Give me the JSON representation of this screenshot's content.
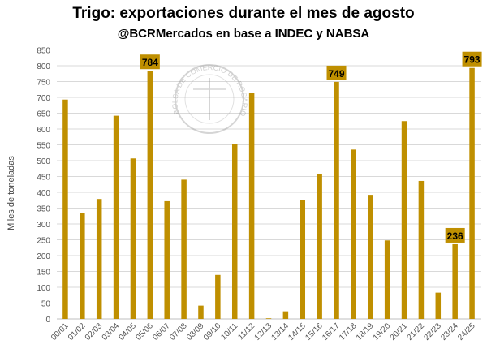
{
  "chart_data": {
    "type": "bar",
    "title": "Trigo: exportaciones durante el mes de agosto",
    "subtitle": "@BCRMercados en base a INDEC y NABSA",
    "xlabel": "",
    "ylabel": "Miles de toneladas",
    "ylim": [
      0,
      850
    ],
    "yticks": [
      0,
      50,
      100,
      150,
      200,
      250,
      300,
      350,
      400,
      450,
      500,
      550,
      600,
      650,
      700,
      750,
      800,
      850
    ],
    "grid": true,
    "bar_color": "#BF8F00",
    "label_bg": "#BF8F00",
    "categories": [
      "00/01",
      "01/02",
      "02/03",
      "03/04",
      "04/05",
      "05/06",
      "06/07",
      "07/08",
      "08/09",
      "09/10",
      "10/11",
      "11/12",
      "12/13",
      "13/14",
      "14/15",
      "15/16",
      "16/17",
      "17/18",
      "18/19",
      "19/20",
      "20/21",
      "21/22",
      "22/23",
      "23/24",
      "24/25"
    ],
    "values": [
      693,
      334,
      379,
      642,
      507,
      784,
      372,
      440,
      42,
      139,
      553,
      714,
      2,
      24,
      376,
      459,
      749,
      535,
      392,
      248,
      625,
      436,
      83,
      236,
      793
    ],
    "data_labels": {
      "05/06": "784",
      "16/17": "749",
      "23/24": "236",
      "24/25": "793"
    },
    "watermark": "BOLSA DE COMERCIO DE ROSARIO"
  }
}
